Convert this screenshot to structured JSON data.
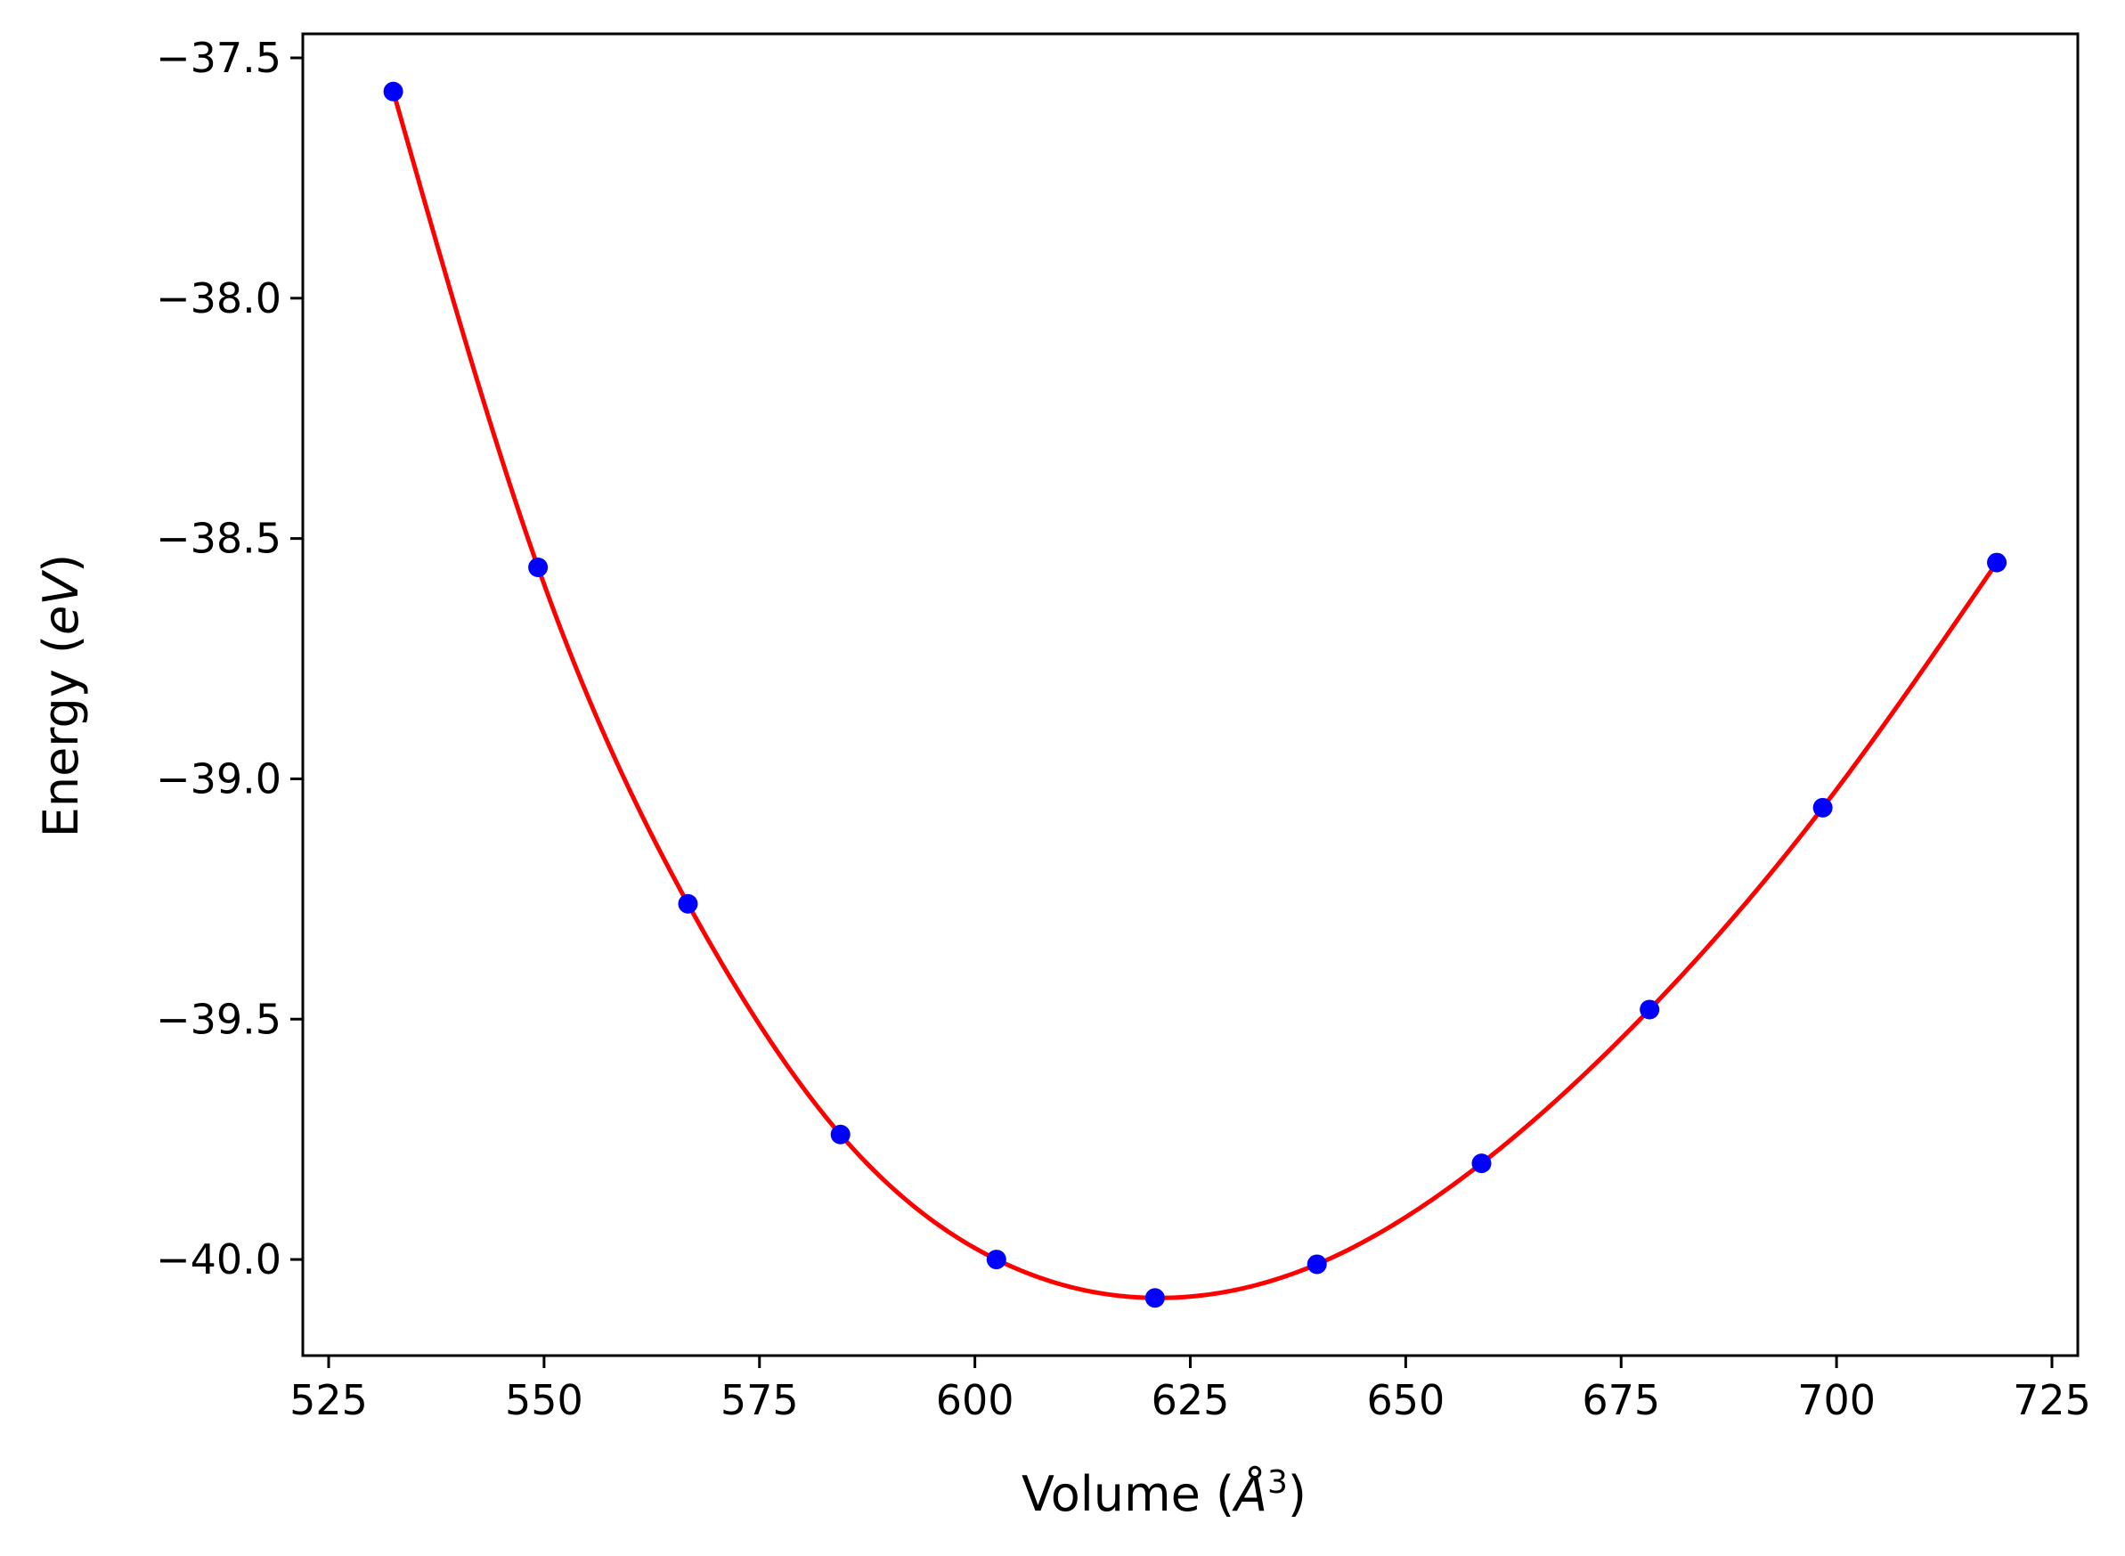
{
  "chart_data": {
    "type": "scatter",
    "title": "",
    "xlabel": {
      "prefix": "Volume (",
      "symbol": "Å",
      "superscript": "3",
      "suffix": ")"
    },
    "ylabel": {
      "prefix": "Energy (",
      "unit": "eV",
      "suffix": ")"
    },
    "xlim": [
      522,
      728
    ],
    "ylim": [
      -40.2,
      -37.45
    ],
    "xticks": [
      525,
      550,
      575,
      600,
      625,
      650,
      675,
      700,
      725
    ],
    "xtick_labels": [
      "525",
      "550",
      "575",
      "600",
      "625",
      "650",
      "675",
      "700",
      "725"
    ],
    "yticks": [
      -37.5,
      -38.0,
      -38.5,
      -39.0,
      -39.5,
      -40.0
    ],
    "ytick_labels": [
      "−37.5",
      "−38.0",
      "−38.5",
      "−39.0",
      "−39.5",
      "−40.0"
    ],
    "grid": false,
    "legend": "none",
    "series": [
      {
        "kind": "points",
        "color": "#0000ff",
        "x": [
          532.5,
          549.3,
          566.7,
          584.4,
          602.5,
          620.9,
          639.7,
          658.8,
          678.3,
          698.4,
          718.6
        ],
        "y": [
          -37.57,
          -38.56,
          -39.26,
          -39.74,
          -40.0,
          -40.08,
          -40.01,
          -39.8,
          -39.48,
          -39.06,
          -38.55
        ]
      },
      {
        "kind": "fit-curve",
        "color": "#ff0000",
        "x": [
          532.5,
          549.3,
          566.7,
          584.4,
          602.5,
          620.9,
          639.7,
          658.8,
          678.3,
          698.4,
          718.6
        ],
        "y": [
          -37.57,
          -38.56,
          -39.26,
          -39.74,
          -40.0,
          -40.08,
          -40.01,
          -39.8,
          -39.48,
          -39.06,
          -38.55
        ]
      }
    ]
  }
}
